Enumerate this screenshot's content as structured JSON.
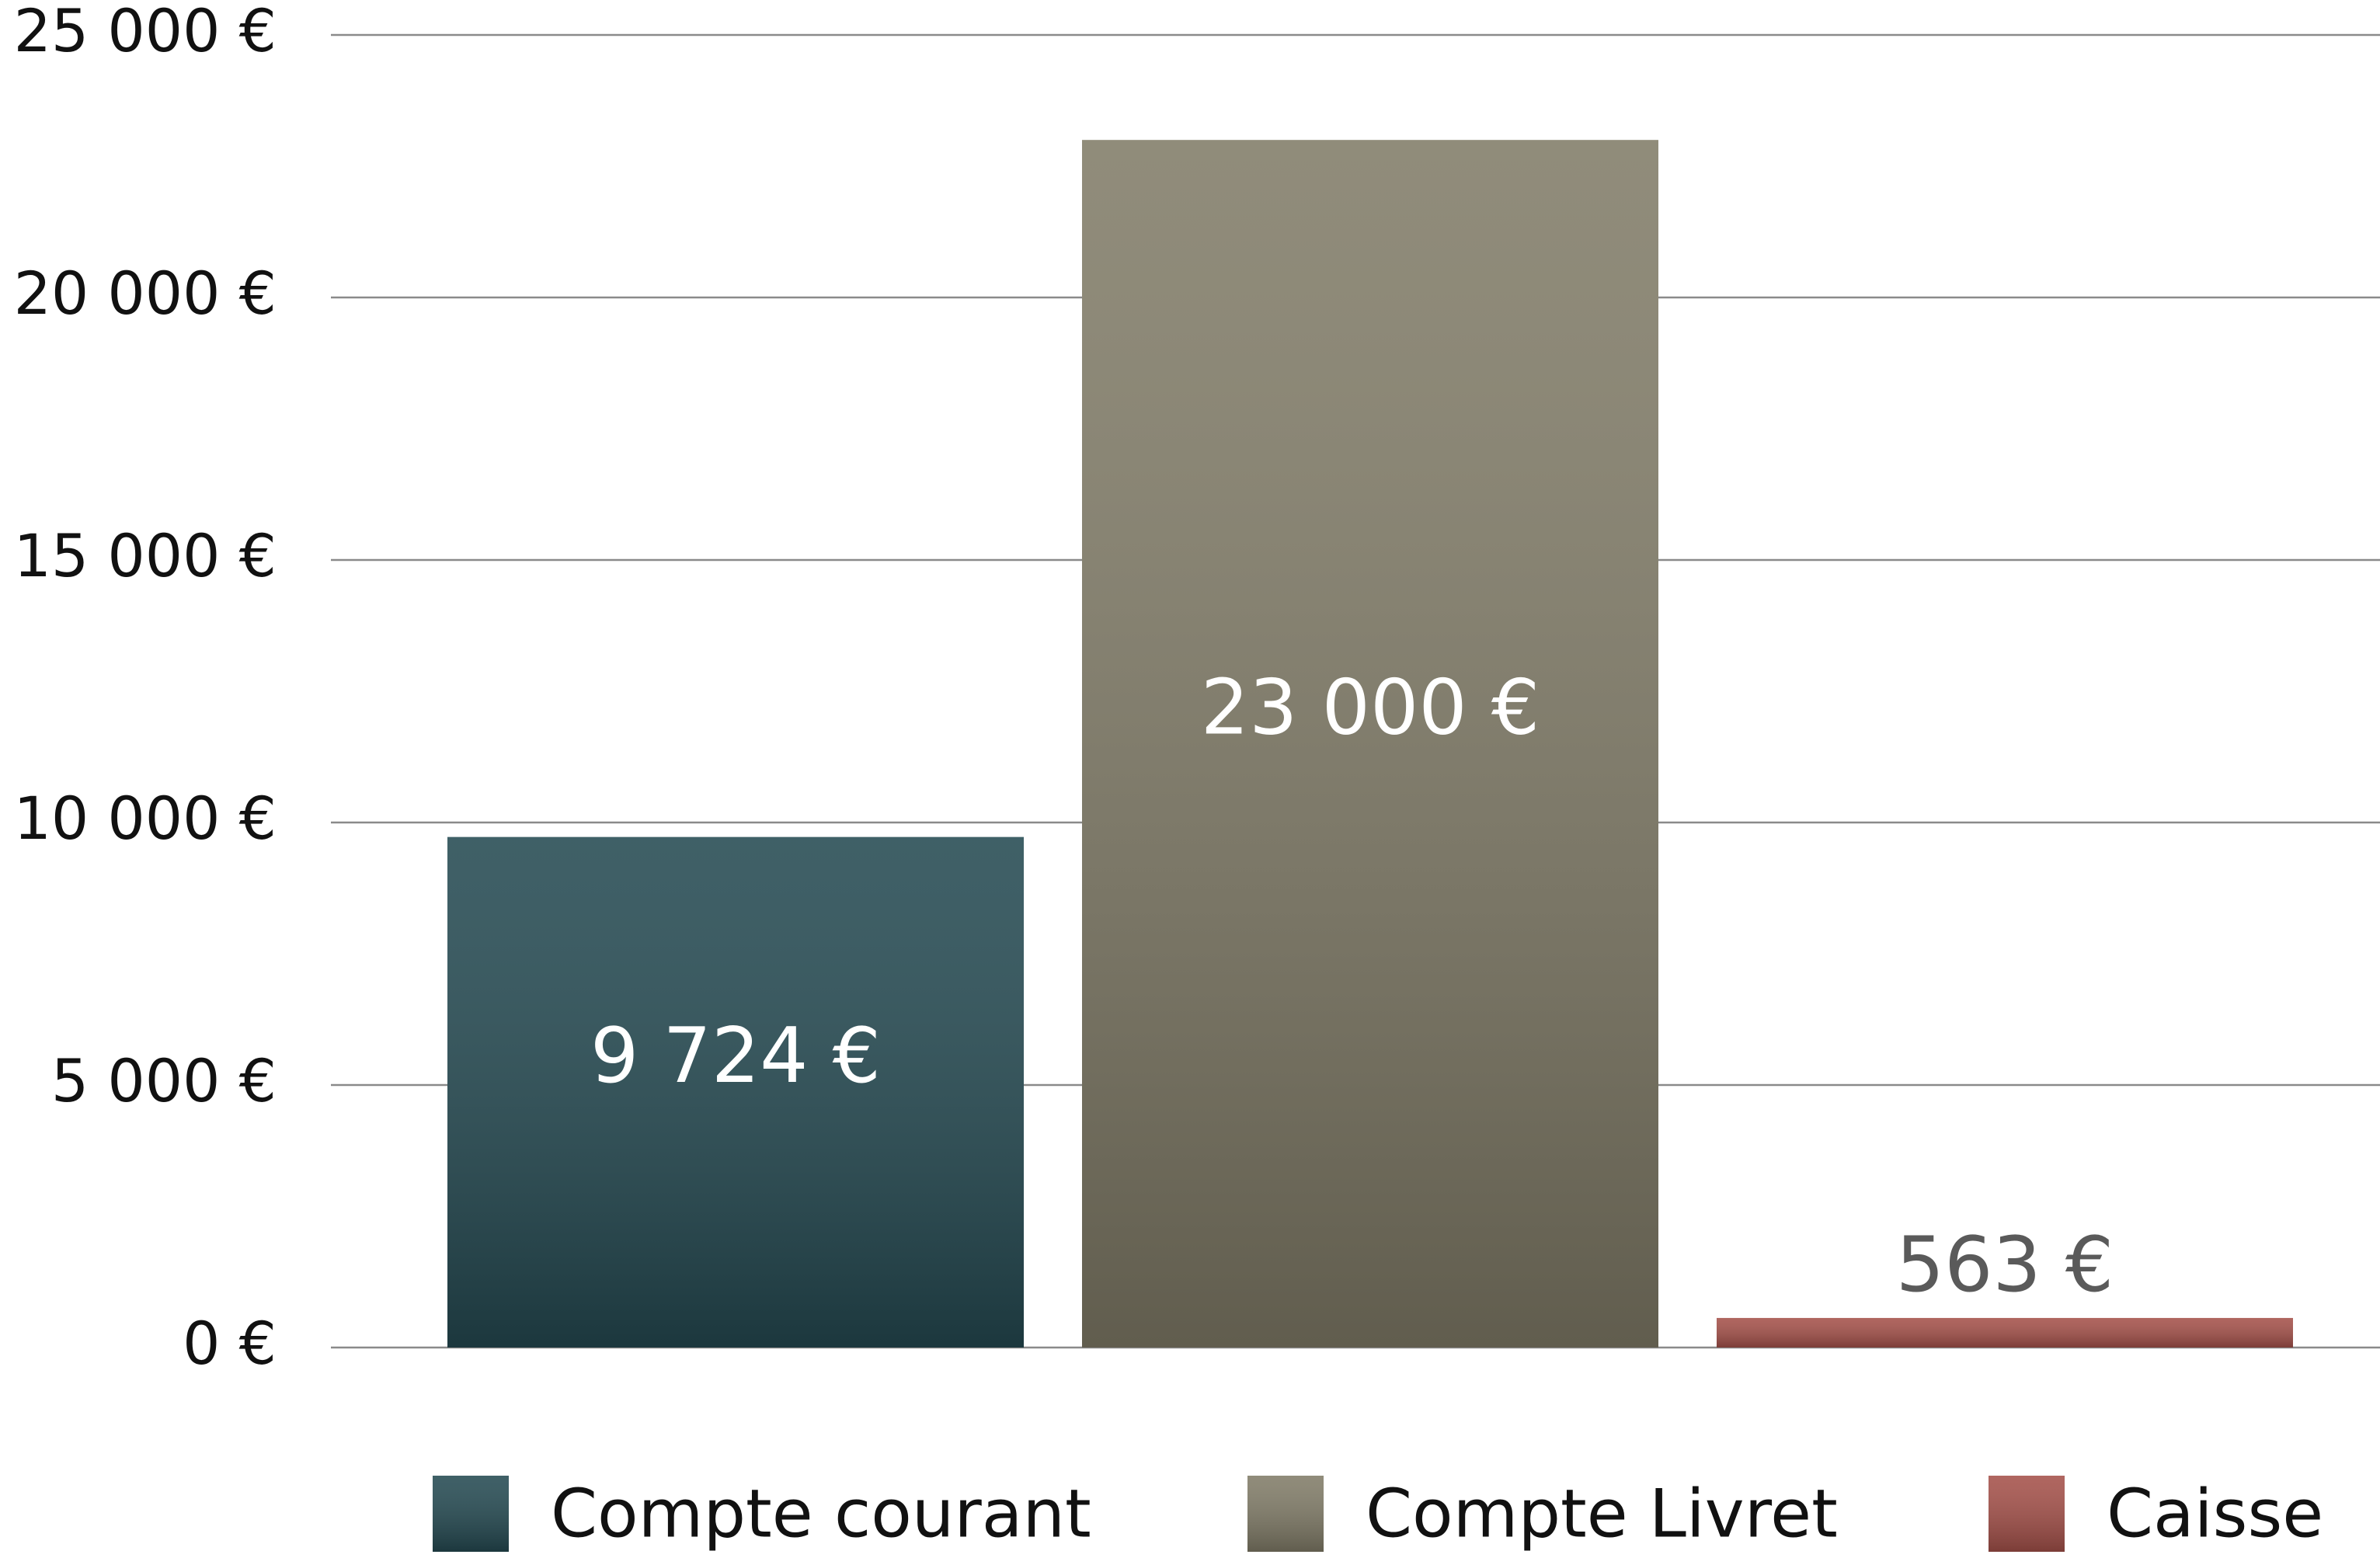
{
  "chart_data": {
    "type": "bar",
    "series": [
      {
        "name": "Compte courant",
        "color": "#254a52",
        "values": [
          9724
        ],
        "value_labels": [
          "9 724 €"
        ]
      },
      {
        "name": "Compte Livret",
        "color": "#817c68",
        "values": [
          23000
        ],
        "value_labels": [
          "23 000 €"
        ]
      },
      {
        "name": "Caisse",
        "color": "#a5514a",
        "values": [
          563
        ],
        "value_labels": [
          "563 €"
        ]
      }
    ],
    "ylim": [
      0,
      25000
    ],
    "yticks": [
      {
        "value": 0,
        "label": "0 €"
      },
      {
        "value": 5000,
        "label": "5 000 €"
      },
      {
        "value": 10000,
        "label": "10 000 €"
      },
      {
        "value": 15000,
        "label": "15 000 €"
      },
      {
        "value": 20000,
        "label": "20 000 €"
      },
      {
        "value": 25000,
        "label": "25 000 €"
      }
    ],
    "grid": true
  }
}
